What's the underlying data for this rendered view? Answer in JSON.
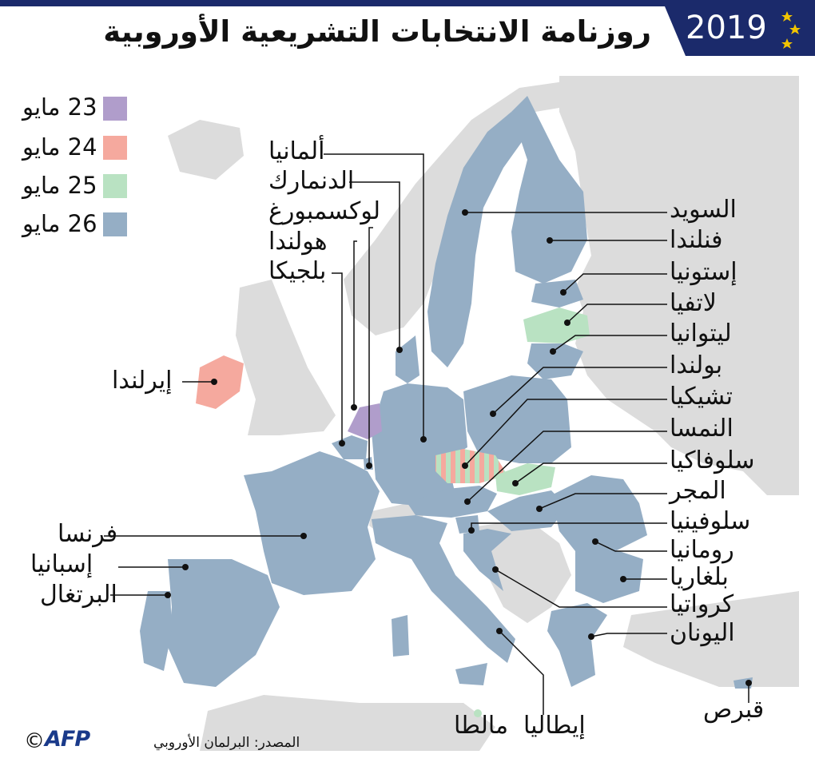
{
  "header": {
    "title": "روزنامة الانتخابات التشريعية الأوروبية",
    "year": "2019"
  },
  "colors": {
    "may23": "#b09dcb",
    "may24": "#f5a99e",
    "may25": "#b9e2c2",
    "may26": "#95aec5",
    "non_eu": "#dcdcdc",
    "sea": "#ffffff",
    "badge": "#1b2a6b",
    "stars": "#f2c400"
  },
  "legend": [
    {
      "label": "23 مايو",
      "color_key": "may23"
    },
    {
      "label": "24 مايو",
      "color_key": "may24"
    },
    {
      "label": "25 مايو",
      "color_key": "may25"
    },
    {
      "label": "26 مايو",
      "color_key": "may26"
    }
  ],
  "countries": {
    "germany": "ألمانيا",
    "denmark": "الدنمارك",
    "luxembourg": "لوكسمبورغ",
    "netherlands": "هولندا",
    "belgium": "بلجيكا",
    "ireland": "إيرلندا",
    "france": "فرنسا",
    "spain": "إسبانيا",
    "portugal": "البرتغال",
    "sweden": "السويد",
    "finland": "فنلندا",
    "estonia": "إستونيا",
    "latvia": "لاتفيا",
    "lithuania": "ليتوانيا",
    "poland": "بولندا",
    "czechia": "تشيكيا",
    "austria": "النمسا",
    "slovakia": "سلوفاكيا",
    "hungary": "المجر",
    "slovenia": "سلوفينيا",
    "romania": "رومانيا",
    "bulgaria": "بلغاريا",
    "croatia": "كرواتيا",
    "greece": "اليونان",
    "cyprus": "قبرص",
    "italy": "إيطاليا",
    "malta": "مالطا"
  },
  "footer": {
    "source": "المصدر: البرلمان الأوروبي",
    "copyright": "©",
    "agency": "AFP"
  }
}
